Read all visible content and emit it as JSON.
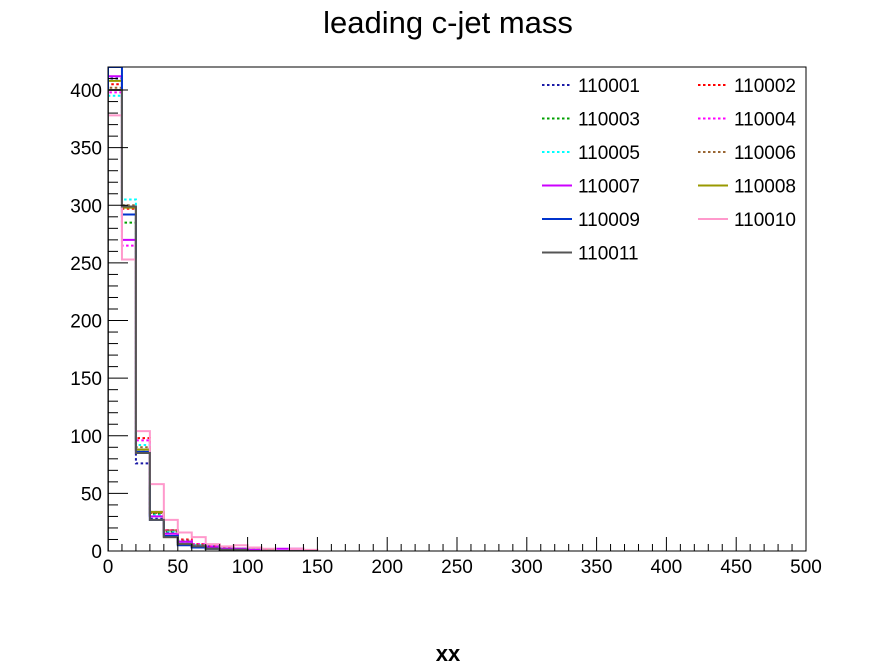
{
  "chart_data": {
    "type": "histogram",
    "title": "leading c-jet mass",
    "xlabel": "xx",
    "ylabel": "",
    "xlim": [
      0,
      500
    ],
    "ylim": [
      0,
      420
    ],
    "bin_width": 10,
    "x_ticks": [
      0,
      50,
      100,
      150,
      200,
      250,
      300,
      350,
      400,
      450,
      500
    ],
    "y_ticks": [
      0,
      50,
      100,
      150,
      200,
      250,
      300,
      350,
      400
    ],
    "grid": false,
    "legend_position": "top-right",
    "series": [
      {
        "name": "110001",
        "color": "#1a1aa6",
        "dash": "dotted",
        "values": [
          410,
          298,
          76,
          28,
          16,
          8,
          5,
          4,
          2,
          2,
          1,
          1,
          0,
          0,
          0
        ]
      },
      {
        "name": "110002",
        "color": "#ff0000",
        "dash": "dotted",
        "values": [
          405,
          297,
          98,
          33,
          18,
          10,
          6,
          4,
          3,
          2,
          1,
          1,
          0,
          0,
          0
        ]
      },
      {
        "name": "110003",
        "color": "#00a000",
        "dash": "dotted",
        "values": [
          400,
          285,
          88,
          32,
          17,
          8,
          5,
          3,
          2,
          2,
          1,
          1,
          0,
          0,
          0
        ]
      },
      {
        "name": "110004",
        "color": "#ff00ff",
        "dash": "dotted",
        "values": [
          398,
          265,
          96,
          34,
          18,
          9,
          6,
          4,
          2,
          2,
          1,
          0,
          0,
          0,
          0
        ]
      },
      {
        "name": "110005",
        "color": "#00ffff",
        "dash": "dotted",
        "values": [
          395,
          305,
          92,
          31,
          17,
          8,
          5,
          3,
          2,
          1,
          1,
          0,
          0,
          0,
          0
        ]
      },
      {
        "name": "110006",
        "color": "#996633",
        "dash": "dotted",
        "values": [
          402,
          300,
          90,
          33,
          18,
          9,
          5,
          3,
          2,
          1,
          1,
          0,
          0,
          0,
          0
        ]
      },
      {
        "name": "110007",
        "color": "#cc00ff",
        "dash": "solid",
        "values": [
          412,
          270,
          85,
          30,
          15,
          8,
          4,
          3,
          2,
          2,
          1,
          0,
          2,
          2,
          0
        ]
      },
      {
        "name": "110008",
        "color": "#999900",
        "dash": "solid",
        "values": [
          408,
          298,
          88,
          34,
          12,
          6,
          3,
          2,
          1,
          1,
          0,
          0,
          0,
          0,
          0
        ]
      },
      {
        "name": "110009",
        "color": "#0033cc",
        "dash": "solid",
        "values": [
          420,
          292,
          86,
          27,
          13,
          5,
          3,
          2,
          1,
          1,
          0,
          0,
          0,
          0,
          0
        ]
      },
      {
        "name": "110010",
        "color": "#ff99cc",
        "dash": "solid",
        "values": [
          378,
          253,
          104,
          58,
          27,
          16,
          12,
          6,
          4,
          5,
          3,
          2,
          0,
          2,
          1
        ]
      },
      {
        "name": "110011",
        "color": "#555555",
        "dash": "solid",
        "values": [
          400,
          299,
          85,
          27,
          12,
          6,
          4,
          2,
          1,
          1,
          0,
          0,
          0,
          0,
          0
        ]
      }
    ]
  }
}
